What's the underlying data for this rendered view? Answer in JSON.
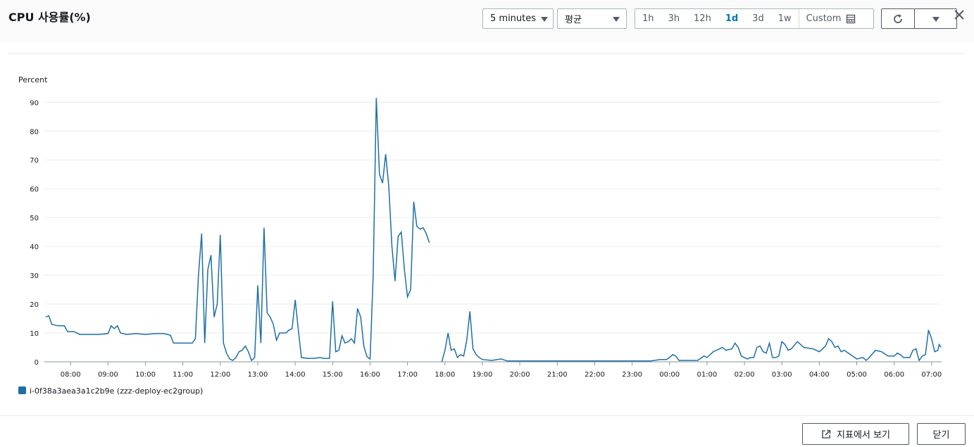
{
  "header": {
    "title": "CPU 사용률(%)",
    "period": "5 minutes",
    "statistic": "평균",
    "ranges": [
      {
        "label": "1h",
        "selected": false
      },
      {
        "label": "3h",
        "selected": false
      },
      {
        "label": "12h",
        "selected": false
      },
      {
        "label": "1d",
        "selected": true
      },
      {
        "label": "3d",
        "selected": false
      },
      {
        "label": "1w",
        "selected": false
      },
      {
        "label": "Custom",
        "selected": false
      }
    ]
  },
  "footer": {
    "view_in_metrics": "지표에서 보기",
    "close": "닫기"
  },
  "chart_data": {
    "type": "line",
    "y_label": "Percent",
    "xlim": [
      "07:18",
      "07:16"
    ],
    "xticks": [
      "08:00",
      "09:00",
      "10:00",
      "11:00",
      "12:00",
      "13:00",
      "14:00",
      "15:00",
      "16:00",
      "17:00",
      "18:00",
      "19:00",
      "20:00",
      "21:00",
      "22:00",
      "23:00",
      "00:00",
      "01:00",
      "02:00",
      "03:00",
      "04:00",
      "05:00",
      "06:00",
      "07:00"
    ],
    "ylim": [
      0,
      93
    ],
    "yticks": [
      0,
      10,
      20,
      30,
      40,
      50,
      60,
      70,
      80,
      90
    ],
    "grid": true,
    "x": [
      "07:20",
      "07:25",
      "07:30",
      "07:40",
      "07:50",
      "07:55",
      "08:05",
      "08:15",
      "08:30",
      "08:45",
      "09:00",
      "09:05",
      "09:10",
      "09:15",
      "09:20",
      "09:30",
      "09:45",
      "10:00",
      "10:15",
      "10:30",
      "10:40",
      "10:45",
      "11:00",
      "11:15",
      "11:20",
      "11:25",
      "11:30",
      "11:35",
      "11:40",
      "11:45",
      "11:50",
      "11:55",
      "12:00",
      "12:05",
      "12:10",
      "12:15",
      "12:20",
      "12:25",
      "12:30",
      "12:35",
      "12:40",
      "12:45",
      "12:50",
      "12:55",
      "13:00",
      "13:05",
      "13:10",
      "13:15",
      "13:20",
      "13:25",
      "13:30",
      "13:35",
      "13:40",
      "13:45",
      "13:50",
      "13:55",
      "14:00",
      "14:05",
      "14:10",
      "14:20",
      "14:30",
      "14:40",
      "14:45",
      "14:55",
      "15:00",
      "15:05",
      "15:10",
      "15:15",
      "15:20",
      "15:25",
      "15:30",
      "15:35",
      "15:40",
      "15:45",
      "15:50",
      "15:55",
      "16:00",
      "16:05",
      "16:10",
      "16:15",
      "16:20",
      "16:25",
      "16:30",
      "16:35",
      "16:40",
      "16:45",
      "16:50",
      "16:55",
      "17:00",
      "17:05",
      "17:10",
      "17:15",
      "17:20",
      "17:25",
      "17:30",
      "17:35",
      "17:40",
      "17:55",
      "18:00",
      "18:05",
      "18:10",
      "18:15",
      "18:20",
      "18:25",
      "18:30",
      "18:35",
      "18:40",
      "18:45",
      "18:50",
      "18:55",
      "19:00",
      "19:15",
      "19:30",
      "19:40",
      "19:55",
      "20:10",
      "20:30",
      "21:00",
      "21:30",
      "22:00",
      "22:30",
      "23:00",
      "23:30",
      "23:45",
      "23:55",
      "00:00",
      "00:05",
      "00:10",
      "00:15",
      "00:30",
      "00:45",
      "00:55",
      "01:00",
      "01:10",
      "01:20",
      "01:25",
      "01:30",
      "01:40",
      "01:45",
      "01:50",
      "01:55",
      "02:00",
      "02:05",
      "02:10",
      "02:15",
      "02:20",
      "02:25",
      "02:30",
      "02:35",
      "02:40",
      "02:45",
      "02:50",
      "02:55",
      "03:00",
      "03:05",
      "03:10",
      "03:15",
      "03:25",
      "03:35",
      "03:50",
      "04:00",
      "04:10",
      "04:15",
      "04:20",
      "04:25",
      "04:30",
      "04:35",
      "04:40",
      "04:50",
      "05:00",
      "05:10",
      "05:15",
      "05:20",
      "05:30",
      "05:40",
      "05:50",
      "06:00",
      "06:05",
      "06:10",
      "06:15",
      "06:25",
      "06:30",
      "06:35",
      "06:40",
      "06:45",
      "06:50",
      "06:55",
      "07:00",
      "07:05",
      "07:10",
      "07:12",
      "07:15"
    ],
    "series": [
      {
        "name": "i-0f38a3aea3a1c2b9e (zzz-deploy-ec2group)",
        "color": "#1f6fa6",
        "values": [
          15.5,
          16,
          13,
          12.5,
          12.5,
          10.5,
          10.5,
          9.5,
          9.5,
          9.5,
          9.8,
          12.5,
          11.5,
          12.5,
          10,
          9.5,
          9.8,
          9.5,
          9.8,
          9.8,
          9.2,
          6.5,
          6.5,
          6.5,
          8,
          30,
          44.5,
          6.5,
          32,
          37,
          15.5,
          20,
          44,
          6.5,
          3,
          1,
          0.5,
          1.5,
          3.5,
          4,
          5.5,
          3.5,
          0.5,
          1.5,
          26.5,
          6.5,
          46.5,
          17,
          15.5,
          13,
          7.5,
          10,
          10,
          10,
          11,
          11.5,
          21.5,
          11,
          1.5,
          1.2,
          1.2,
          1.5,
          1.2,
          1.2,
          21,
          3.5,
          4,
          9,
          6.5,
          7,
          8,
          6.5,
          18.5,
          15.5,
          5.5,
          1.8,
          1,
          30,
          91.5,
          65,
          62,
          72,
          61,
          40,
          28,
          43.5,
          45,
          32,
          22.5,
          25,
          55.5,
          47,
          46,
          46.5,
          44.5,
          41.3,
          null,
          0,
          4,
          10,
          4,
          4.5,
          1.5,
          2.5,
          2,
          7.5,
          17.5,
          4.5,
          2.5,
          1.5,
          0.8,
          0.5,
          1,
          0.3,
          0.3,
          0.3,
          0.3,
          0.3,
          0.3,
          0.3,
          0.3,
          0.3,
          0.3,
          0.8,
          0.8,
          1.5,
          2.5,
          2,
          0.5,
          0.5,
          0.5,
          2,
          1.5,
          3.5,
          4.5,
          5,
          4,
          4.5,
          6.5,
          5,
          2,
          1.5,
          1,
          1.5,
          1.5,
          5,
          5.5,
          3.5,
          3,
          6.5,
          1.5,
          1.5,
          2,
          7,
          6,
          4,
          4.5,
          7,
          5,
          4.5,
          3.5,
          5.5,
          8,
          7,
          5,
          5.5,
          3.5,
          4,
          2.5,
          1,
          1.5,
          0.5,
          1.5,
          4,
          3.5,
          2,
          2,
          3,
          2.5,
          1.5,
          1.5,
          4,
          4.5,
          0.5,
          2,
          2.5,
          11,
          8,
          3.5,
          4,
          6,
          5
        ]
      }
    ]
  }
}
